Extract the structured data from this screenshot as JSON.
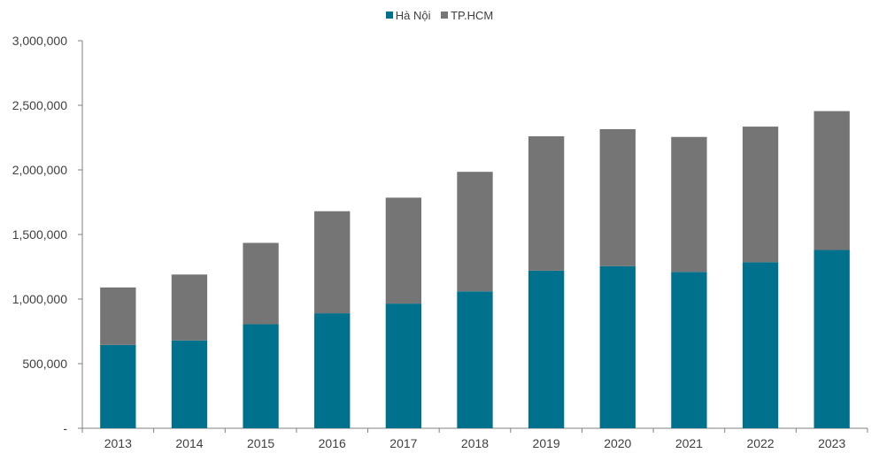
{
  "chart_data": {
    "type": "bar",
    "stacked": true,
    "title": "",
    "xlabel": "",
    "ylabel": "",
    "categories": [
      "2013",
      "2014",
      "2015",
      "2016",
      "2017",
      "2018",
      "2019",
      "2020",
      "2021",
      "2022",
      "2023"
    ],
    "series": [
      {
        "name": "Hà Nội",
        "color": "#00718C",
        "values": [
          645000,
          680000,
          805000,
          890000,
          965000,
          1060000,
          1220000,
          1255000,
          1210000,
          1285000,
          1380000
        ]
      },
      {
        "name": "TP.HCM",
        "color": "#757575",
        "values": [
          445000,
          510000,
          630000,
          790000,
          820000,
          925000,
          1040000,
          1060000,
          1045000,
          1050000,
          1075000
        ]
      }
    ],
    "ylim": [
      0,
      3000000
    ],
    "yticks": [
      0,
      500000,
      1000000,
      1500000,
      2000000,
      2500000,
      3000000
    ],
    "ytick_labels": [
      "-",
      "500,000",
      "1,000,000",
      "1,500,000",
      "2,000,000",
      "2,500,000",
      "3,000,000"
    ],
    "grid": false,
    "legend_position": "top-center"
  }
}
